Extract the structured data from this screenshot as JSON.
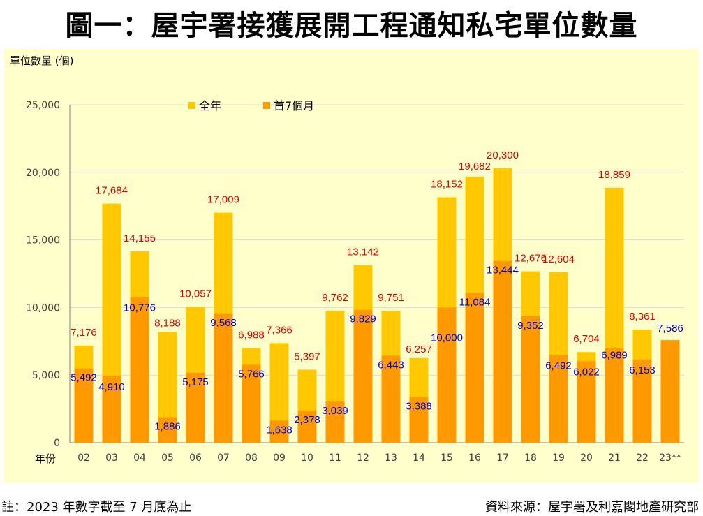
{
  "title": "圖一：屋宇署接獲展開工程通知私宅單位數量",
  "footnote": "註：2023 年數字截至 7 月底為止",
  "source": "資料來源：屋宇署及利嘉閣地產研究部",
  "chart_data": {
    "type": "bar",
    "title": "圖一：屋宇署接獲展開工程通知私宅單位數量",
    "ylabel": "單位數量 (個)",
    "xlabel": "年份",
    "ylim": [
      0,
      25000
    ],
    "yticks": [
      0,
      5000,
      10000,
      15000,
      20000,
      25000
    ],
    "ytick_labels": [
      "0",
      "5,000",
      "10,000",
      "15,000",
      "20,000",
      "25,000"
    ],
    "categories": [
      "02",
      "03",
      "04",
      "05",
      "06",
      "07",
      "08",
      "09",
      "10",
      "11",
      "12",
      "13",
      "14",
      "15",
      "16",
      "17",
      "18",
      "19",
      "20",
      "21",
      "22",
      "23**"
    ],
    "series": [
      {
        "name": "全年",
        "color": "#FFC800",
        "values": [
          7176,
          17684,
          14155,
          8188,
          10057,
          17009,
          6988,
          7366,
          5397,
          9762,
          13142,
          9751,
          6257,
          18152,
          19682,
          20300,
          12676,
          12604,
          6704,
          18859,
          8361,
          null
        ],
        "labels": [
          "7,176",
          "17,684",
          "14,155",
          "8,188",
          "10,057",
          "17,009",
          "6,988",
          "7,366",
          "5,397",
          "9,762",
          "13,142",
          "9,751",
          "6,257",
          "18,152",
          "19,682",
          "20,300",
          "12,676",
          "12,604",
          "6,704",
          "18,859",
          "8,361",
          ""
        ],
        "label_color": "#E00000"
      },
      {
        "name": "首7個月",
        "color": "#FF9900",
        "values": [
          5492,
          4910,
          10776,
          1886,
          5175,
          9568,
          5766,
          1638,
          2378,
          3039,
          9829,
          6443,
          3388,
          10000,
          11084,
          13444,
          9352,
          6492,
          6022,
          6989,
          6153,
          7586
        ],
        "labels": [
          "5,492",
          "4,910",
          "10,776",
          "1,886",
          "5,175",
          "9,568",
          "5,766",
          "1,638",
          "2,378",
          "3,039",
          "9,829",
          "6,443",
          "3,388",
          "10,000",
          "11,084",
          "13,444",
          "9,352",
          "6,492",
          "6,022",
          "6,989",
          "6,153",
          "7,586"
        ],
        "label_color": "#0000E0"
      }
    ],
    "legend_position": "top-center"
  }
}
